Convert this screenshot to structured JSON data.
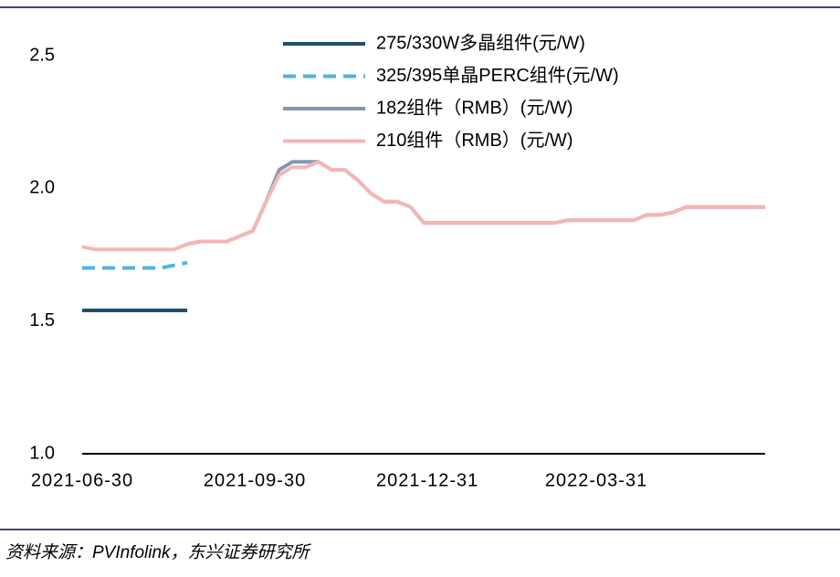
{
  "chart_data": {
    "type": "line",
    "x": [
      "2021-06-30",
      "2021-07-07",
      "2021-07-14",
      "2021-07-21",
      "2021-07-28",
      "2021-08-04",
      "2021-08-11",
      "2021-08-18",
      "2021-08-25",
      "2021-09-01",
      "2021-09-08",
      "2021-09-15",
      "2021-09-22",
      "2021-09-29",
      "2021-10-06",
      "2021-10-13",
      "2021-10-20",
      "2021-10-27",
      "2021-11-03",
      "2021-11-10",
      "2021-11-17",
      "2021-11-24",
      "2021-12-01",
      "2021-12-08",
      "2021-12-15",
      "2021-12-22",
      "2021-12-29",
      "2022-01-05",
      "2022-01-12",
      "2022-01-19",
      "2022-01-26",
      "2022-02-02",
      "2022-02-09",
      "2022-02-16",
      "2022-02-23",
      "2022-03-02",
      "2022-03-09",
      "2022-03-16",
      "2022-03-23",
      "2022-03-30",
      "2022-04-06",
      "2022-04-13",
      "2022-04-20",
      "2022-04-27",
      "2022-05-04",
      "2022-05-11",
      "2022-05-18",
      "2022-05-25",
      "2022-06-01",
      "2022-06-08",
      "2022-06-15",
      "2022-06-22",
      "2022-06-29"
    ],
    "series": [
      {
        "name": "275/330W多晶组件(元/W)",
        "color": "#1f4e6e",
        "dash": false,
        "values": [
          1.54,
          1.54,
          1.54,
          1.54,
          1.54,
          1.54,
          1.54,
          1.54,
          1.54,
          null,
          null,
          null,
          null,
          null,
          null,
          null,
          null,
          null,
          null,
          null,
          null,
          null,
          null,
          null,
          null,
          null,
          null,
          null,
          null,
          null,
          null,
          null,
          null,
          null,
          null,
          null,
          null,
          null,
          null,
          null,
          null,
          null,
          null,
          null,
          null,
          null,
          null,
          null,
          null,
          null,
          null,
          null,
          null
        ]
      },
      {
        "name": "325/395单晶PERC组件(元/W)",
        "color": "#4fb3e6",
        "dash": true,
        "values": [
          1.7,
          1.7,
          1.7,
          1.7,
          1.7,
          1.7,
          1.7,
          1.71,
          1.72,
          null,
          null,
          null,
          null,
          null,
          null,
          null,
          null,
          null,
          null,
          null,
          null,
          null,
          null,
          null,
          null,
          null,
          null,
          null,
          null,
          null,
          null,
          null,
          null,
          null,
          null,
          null,
          null,
          null,
          null,
          null,
          null,
          null,
          null,
          null,
          null,
          null,
          null,
          null,
          null,
          null,
          null,
          null,
          null
        ]
      },
      {
        "name": "182组件（RMB）(元/W)",
        "color": "#8199b0",
        "dash": false,
        "values": [
          null,
          null,
          null,
          null,
          null,
          null,
          null,
          null,
          1.79,
          1.8,
          1.8,
          1.8,
          1.82,
          1.84,
          1.95,
          2.07,
          2.1,
          2.1,
          2.1,
          2.07,
          2.07,
          2.03,
          1.98,
          1.95,
          1.95,
          1.93,
          1.87,
          1.87,
          1.87,
          1.87,
          1.87,
          1.87,
          1.87,
          1.87,
          1.87,
          1.87,
          1.87,
          1.88,
          1.88,
          1.88,
          1.88,
          1.88,
          1.88,
          1.9,
          1.9,
          1.91,
          1.93,
          1.93,
          1.93,
          1.93,
          1.93,
          1.93,
          1.93
        ]
      },
      {
        "name": "210组件（RMB）(元/W)",
        "color": "#f4b6b6",
        "dash": false,
        "values": [
          1.78,
          1.77,
          1.77,
          1.77,
          1.77,
          1.77,
          1.77,
          1.77,
          1.79,
          1.8,
          1.8,
          1.8,
          1.82,
          1.84,
          1.95,
          2.05,
          2.08,
          2.08,
          2.1,
          2.07,
          2.07,
          2.03,
          1.98,
          1.95,
          1.95,
          1.93,
          1.87,
          1.87,
          1.87,
          1.87,
          1.87,
          1.87,
          1.87,
          1.87,
          1.87,
          1.87,
          1.87,
          1.88,
          1.88,
          1.88,
          1.88,
          1.88,
          1.88,
          1.9,
          1.9,
          1.91,
          1.93,
          1.93,
          1.93,
          1.93,
          1.93,
          1.93,
          1.93
        ]
      }
    ],
    "xlim": [
      "2021-06-30",
      "2022-06-29"
    ],
    "xticks": [
      "2021-06-30",
      "2021-09-30",
      "2021-12-31",
      "2022-03-31"
    ],
    "ylim": [
      1,
      2.5
    ],
    "yticks": [
      {
        "value": 1,
        "label": "1.0"
      },
      1.5,
      {
        "value": 2,
        "label": "2.0"
      },
      2.5
    ],
    "source": "资料来源：PVInfolink，东兴证券研究所"
  }
}
